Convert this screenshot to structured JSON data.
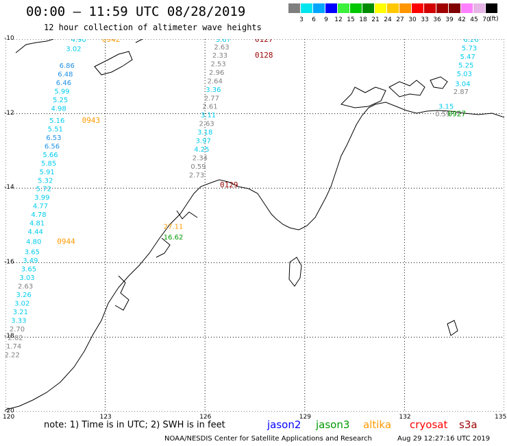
{
  "title": "00:00 – 11:59 UTC 08/28/2019",
  "subtitle": "12 hour collection of altimeter wave heights",
  "legend": {
    "unit": "(ft)",
    "items": [
      {
        "label": "3",
        "color": "#7f7f7f"
      },
      {
        "label": "6",
        "color": "#00e5ee"
      },
      {
        "label": "9",
        "color": "#00a5ff"
      },
      {
        "label": "12",
        "color": "#0000ff"
      },
      {
        "label": "15",
        "color": "#3cf03c"
      },
      {
        "label": "18",
        "color": "#00c800"
      },
      {
        "label": "21",
        "color": "#008c00"
      },
      {
        "label": "24",
        "color": "#ffff00"
      },
      {
        "label": "27",
        "color": "#ffc800"
      },
      {
        "label": "30",
        "color": "#ff9600"
      },
      {
        "label": "33",
        "color": "#ff0000"
      },
      {
        "label": "36",
        "color": "#d20000"
      },
      {
        "label": "39",
        "color": "#a00000"
      },
      {
        "label": "42",
        "color": "#800000"
      },
      {
        "label": "45",
        "color": "#ff80ff"
      },
      {
        "label": "70",
        "color": "#e6b4e6"
      },
      {
        "label": "",
        "color": "#000000"
      }
    ]
  },
  "map": {
    "lat_ticks": [
      {
        "label": "-10",
        "value": -10
      },
      {
        "label": "-12",
        "value": -12
      },
      {
        "label": "-14",
        "value": -14
      },
      {
        "label": "-16",
        "value": -16
      },
      {
        "label": "-18",
        "value": -18
      },
      {
        "label": "-20",
        "value": -20
      }
    ],
    "lon_ticks": [
      {
        "label": "120",
        "value": 120
      },
      {
        "label": "123",
        "value": 123
      },
      {
        "label": "126",
        "value": 126
      },
      {
        "label": "129",
        "value": 129
      },
      {
        "label": "132",
        "value": 132
      },
      {
        "label": "135",
        "value": 135
      }
    ],
    "extent": {
      "lon": [
        120,
        135
      ],
      "lat": [
        -20,
        -10
      ]
    },
    "grid": "dotted",
    "colors": {
      "gray": "#7f7f7f",
      "cyan": "#00ccee",
      "blue": "#1e90e6",
      "altika": "#ff9900",
      "jason3": "#009900",
      "s3a": "#990000"
    },
    "tracks": [
      {
        "name": "altika-0942",
        "time": "0942",
        "time_color": "#ff9900",
        "time_pos": {
          "lon": 122.9,
          "lat": -10.0
        },
        "obs": [
          {
            "v": "4.90",
            "lon": 122.2,
            "lat": -10.0,
            "c": "#00ccee"
          },
          {
            "v": "3.02",
            "lon": 122.05,
            "lat": -10.25,
            "c": "#00ccee"
          },
          {
            "v": "6.86",
            "lon": 121.85,
            "lat": -10.7,
            "c": "#1e90e6"
          },
          {
            "v": "6.48",
            "lon": 121.8,
            "lat": -10.93,
            "c": "#1e90e6"
          },
          {
            "v": "6.46",
            "lon": 121.75,
            "lat": -11.16,
            "c": "#1e90e6"
          },
          {
            "v": "5.99",
            "lon": 121.7,
            "lat": -11.39,
            "c": "#00ccee"
          },
          {
            "v": "5.25",
            "lon": 121.65,
            "lat": -11.62,
            "c": "#00ccee"
          },
          {
            "v": "4.98",
            "lon": 121.6,
            "lat": -11.85,
            "c": "#00ccee"
          },
          {
            "v": "5.16",
            "lon": 121.55,
            "lat": -12.17,
            "c": "#00ccee"
          }
        ]
      },
      {
        "name": "altika-0943",
        "time": "0943",
        "time_color": "#ff9900",
        "time_pos": {
          "lon": 122.3,
          "lat": -12.17
        },
        "obs": [
          {
            "v": "5.51",
            "lon": 121.5,
            "lat": -12.4,
            "c": "#00ccee"
          },
          {
            "v": "6.53",
            "lon": 121.45,
            "lat": -12.63,
            "c": "#1e90e6"
          },
          {
            "v": "6.56",
            "lon": 121.4,
            "lat": -12.86,
            "c": "#1e90e6"
          },
          {
            "v": "5.66",
            "lon": 121.35,
            "lat": -13.09,
            "c": "#00ccee"
          },
          {
            "v": "5.85",
            "lon": 121.3,
            "lat": -13.32,
            "c": "#00ccee"
          },
          {
            "v": "5.91",
            "lon": 121.25,
            "lat": -13.55,
            "c": "#00ccee"
          },
          {
            "v": "5.32",
            "lon": 121.2,
            "lat": -13.78,
            "c": "#00ccee"
          },
          {
            "v": "5.72",
            "lon": 121.15,
            "lat": -14.01,
            "c": "#00ccee"
          },
          {
            "v": "3.99",
            "lon": 121.1,
            "lat": -14.24,
            "c": "#00ccee"
          },
          {
            "v": "4.77",
            "lon": 121.05,
            "lat": -14.47,
            "c": "#00ccee"
          },
          {
            "v": "4.78",
            "lon": 121.0,
            "lat": -14.7,
            "c": "#00ccee"
          },
          {
            "v": "4.81",
            "lon": 120.95,
            "lat": -14.93,
            "c": "#00ccee"
          },
          {
            "v": "4.44",
            "lon": 120.9,
            "lat": -15.16,
            "c": "#00ccee"
          },
          {
            "v": "4.80",
            "lon": 120.85,
            "lat": -15.42,
            "c": "#00ccee"
          }
        ]
      },
      {
        "name": "altika-0944",
        "time": "0944",
        "time_color": "#ff9900",
        "time_pos": {
          "lon": 121.55,
          "lat": -15.42
        },
        "obs": [
          {
            "v": "3.65",
            "lon": 120.8,
            "lat": -15.7,
            "c": "#00ccee"
          },
          {
            "v": "3.49",
            "lon": 120.75,
            "lat": -15.93,
            "c": "#00ccee"
          },
          {
            "v": "3.65",
            "lon": 120.7,
            "lat": -16.16,
            "c": "#00ccee"
          },
          {
            "v": "3.03",
            "lon": 120.65,
            "lat": -16.39,
            "c": "#00ccee"
          },
          {
            "v": "2.63",
            "lon": 120.6,
            "lat": -16.62,
            "c": "#7f7f7f"
          },
          {
            "v": "3.26",
            "lon": 120.55,
            "lat": -16.85,
            "c": "#00ccee"
          },
          {
            "v": "3.02",
            "lon": 120.5,
            "lat": -17.08,
            "c": "#00ccee"
          },
          {
            "v": "3.21",
            "lon": 120.45,
            "lat": -17.31,
            "c": "#00ccee"
          },
          {
            "v": "3.33",
            "lon": 120.4,
            "lat": -17.54,
            "c": "#00ccee"
          },
          {
            "v": "2.70",
            "lon": 120.35,
            "lat": -17.77,
            "c": "#7f7f7f"
          },
          {
            "v": "2.82",
            "lon": 120.3,
            "lat": -18.0,
            "c": "#7f7f7f"
          },
          {
            "v": "1.74",
            "lon": 120.25,
            "lat": -18.23,
            "c": "#7f7f7f"
          },
          {
            "v": "2.22",
            "lon": 120.2,
            "lat": -18.46,
            "c": "#7f7f7f"
          }
        ]
      },
      {
        "name": "s3a-0127",
        "time": "0127",
        "time_color": "#990000",
        "time_pos": {
          "lon": 127.5,
          "lat": -10.0
        },
        "obs": [
          {
            "v": "3.67",
            "lon": 126.55,
            "lat": -10.0,
            "c": "#00ccee"
          },
          {
            "v": "2.63",
            "lon": 126.5,
            "lat": -10.2,
            "c": "#7f7f7f"
          },
          {
            "v": "2.33",
            "lon": 126.45,
            "lat": -10.42,
            "c": "#7f7f7f"
          },
          {
            "v": "2.53",
            "lon": 126.4,
            "lat": -10.65,
            "c": "#7f7f7f"
          },
          {
            "v": "2.96",
            "lon": 126.35,
            "lat": -10.88,
            "c": "#7f7f7f"
          },
          {
            "v": "2.64",
            "lon": 126.3,
            "lat": -11.11,
            "c": "#7f7f7f"
          },
          {
            "v": "3.36",
            "lon": 126.25,
            "lat": -11.34,
            "c": "#00ccee"
          },
          {
            "v": "2.77",
            "lon": 126.2,
            "lat": -11.57,
            "c": "#7f7f7f"
          },
          {
            "v": "2.61",
            "lon": 126.15,
            "lat": -11.8,
            "c": "#7f7f7f"
          },
          {
            "v": "3.11",
            "lon": 126.1,
            "lat": -12.03,
            "c": "#00ccee"
          },
          {
            "v": "2.63",
            "lon": 126.05,
            "lat": -12.26,
            "c": "#7f7f7f"
          },
          {
            "v": "3.18",
            "lon": 126.0,
            "lat": -12.49,
            "c": "#00ccee"
          },
          {
            "v": "3.97",
            "lon": 125.95,
            "lat": -12.72,
            "c": "#00ccee"
          },
          {
            "v": "4.25",
            "lon": 125.9,
            "lat": -12.95,
            "c": "#00ccee"
          },
          {
            "v": "2.34",
            "lon": 125.85,
            "lat": -13.18,
            "c": "#7f7f7f"
          },
          {
            "v": "0.59",
            "lon": 125.8,
            "lat": -13.41,
            "c": "#7f7f7f"
          },
          {
            "v": "2.73",
            "lon": 125.75,
            "lat": -13.64,
            "c": "#7f7f7f"
          }
        ]
      },
      {
        "name": "s3a-0128",
        "time": "0128",
        "time_color": "#990000",
        "time_pos": {
          "lon": 127.5,
          "lat": -10.42
        },
        "obs": []
      },
      {
        "name": "s3a-0129",
        "time": "0129",
        "time_color": "#990000",
        "time_pos": {
          "lon": 126.45,
          "lat": -13.9
        },
        "obs": []
      },
      {
        "name": "coastal",
        "time": "",
        "time_color": "#000000",
        "time_pos": {
          "lon": 126,
          "lat": -14
        },
        "obs": [
          {
            "v": "27.11",
            "lon": 125.05,
            "lat": -15.02,
            "c": "#ff9900"
          },
          {
            "v": "16.62",
            "lon": 125.05,
            "lat": -15.3,
            "c": "#009900"
          }
        ]
      },
      {
        "name": "jason3-0927",
        "time": "0927",
        "time_color": "#009900",
        "time_pos": {
          "lon": 133.3,
          "lat": -12.0
        },
        "obs": [
          {
            "v": "6.26",
            "lon": 134.0,
            "lat": -10.0,
            "c": "#00ccee"
          },
          {
            "v": "5.73",
            "lon": 133.95,
            "lat": -10.23,
            "c": "#00ccee"
          },
          {
            "v": "5.47",
            "lon": 133.9,
            "lat": -10.46,
            "c": "#00ccee"
          },
          {
            "v": "5.25",
            "lon": 133.85,
            "lat": -10.69,
            "c": "#00ccee"
          },
          {
            "v": "5.03",
            "lon": 133.8,
            "lat": -10.92,
            "c": "#00ccee"
          },
          {
            "v": "3.04",
            "lon": 133.75,
            "lat": -11.19,
            "c": "#00ccee"
          },
          {
            "v": "2.87",
            "lon": 133.7,
            "lat": -11.4,
            "c": "#7f7f7f"
          },
          {
            "v": "3.15",
            "lon": 133.25,
            "lat": -11.8,
            "c": "#00ccee"
          },
          {
            "v": "0.59",
            "lon": 133.15,
            "lat": -12.0,
            "c": "#7f7f7f"
          }
        ]
      }
    ]
  },
  "note": "note:  1) Time is in UTC;  2) SWH is in feet",
  "satellites": [
    {
      "name": "jason2",
      "color": "#0000ff"
    },
    {
      "name": "jason3",
      "color": "#009900"
    },
    {
      "name": "altika",
      "color": "#ff9900"
    },
    {
      "name": "cryosat",
      "color": "#ff0000"
    },
    {
      "name": "s3a",
      "color": "#990000"
    }
  ],
  "credit": "NOAA/NESDIS Center for Satellite Applications and Research",
  "timestamp": "Aug 29 12:27:16 UTC 2019"
}
